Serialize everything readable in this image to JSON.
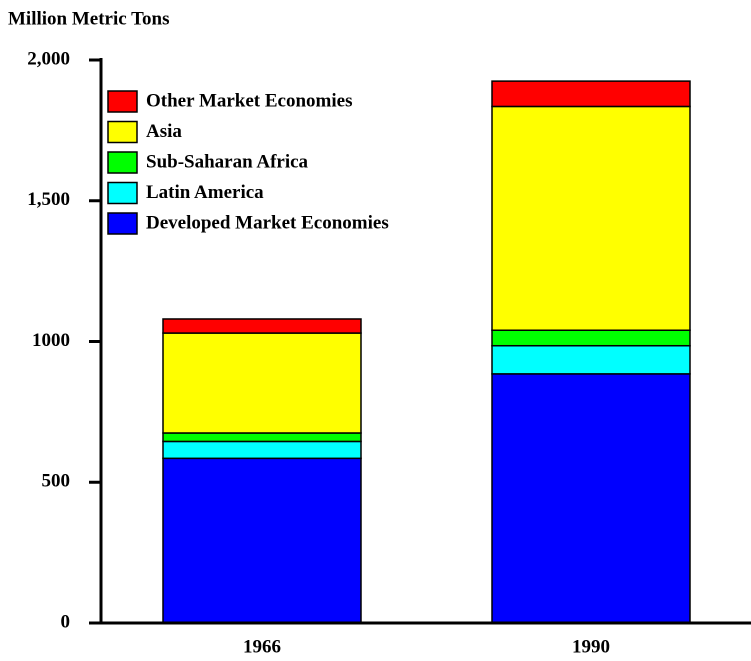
{
  "chart_data": {
    "type": "stacked_bar",
    "y_label": "Million Metric Tons",
    "categories": [
      "1966",
      "1990"
    ],
    "series": [
      {
        "name": "Developed Market Economies",
        "color": "#0000ff",
        "values": [
          585,
          885
        ]
      },
      {
        "name": "Latin America",
        "color": "#00ffff",
        "values": [
          60,
          100
        ]
      },
      {
        "name": "Sub-Saharan Africa",
        "color": "#00ff00",
        "values": [
          30,
          55
        ]
      },
      {
        "name": "Asia",
        "color": "#ffff00",
        "values": [
          355,
          795
        ]
      },
      {
        "name": "Other Market Economies",
        "color": "#ff0000",
        "values": [
          50,
          90
        ]
      }
    ],
    "ylim": [
      0,
      2000
    ],
    "yticks": [
      0,
      500,
      1000,
      {
        "value": 1500,
        "label": "1,500"
      },
      {
        "value": 2000,
        "label": "2,000"
      }
    ],
    "legend": "upper left"
  }
}
